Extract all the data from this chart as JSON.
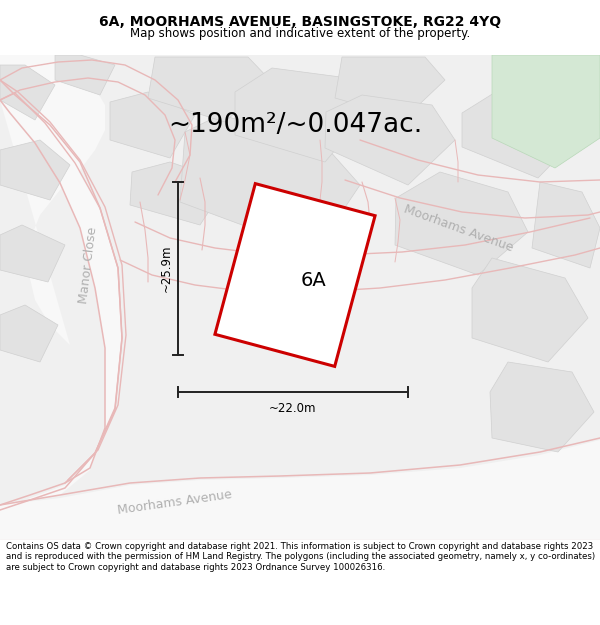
{
  "title": "6A, MOORHAMS AVENUE, BASINGSTOKE, RG22 4YQ",
  "subtitle": "Map shows position and indicative extent of the property.",
  "area_text": "~190m²/~0.047ac.",
  "label_6a": "6A",
  "label_width": "~22.0m",
  "label_height": "~25.9m",
  "label_manor_close": "Manor Close",
  "label_moorhams_diag": "Moorhams Avenue",
  "label_moorhams_bottom": "Moorhams Avenue",
  "footer": "Contains OS data © Crown copyright and database right 2021. This information is subject to Crown copyright and database rights 2023 and is reproduced with the permission of HM Land Registry. The polygons (including the associated geometry, namely x, y co-ordinates) are subject to Crown copyright and database rights 2023 Ordnance Survey 100026316.",
  "bg_color": "#ffffff",
  "map_bg": "#f0f0f0",
  "block_color": "#e2e2e2",
  "block_edge": "#d0d0d0",
  "road_color": "#f8f8f8",
  "road_line": "#e8b8b8",
  "green_color": "#d4e8d4",
  "green_edge": "#b8d8b8",
  "subject_fill": "#ffffff",
  "subject_edge": "#cc0000",
  "dim_color": "#222222",
  "street_color": "#b0b0b0",
  "title_fontsize": 10,
  "subtitle_fontsize": 8.5,
  "area_fontsize": 19,
  "plot_label_fontsize": 14,
  "dim_fontsize": 8.5,
  "street_fontsize": 9,
  "footer_fontsize": 6.2
}
